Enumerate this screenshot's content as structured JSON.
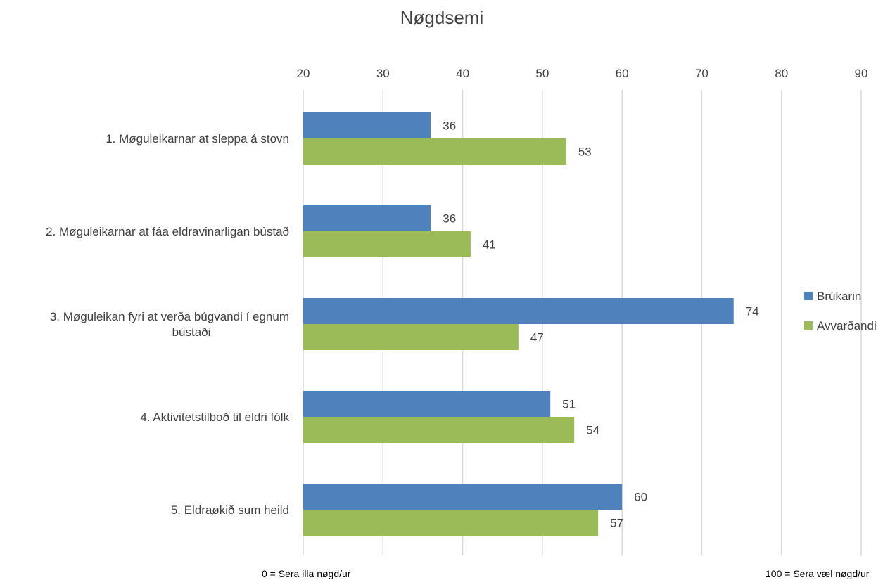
{
  "chart_data": {
    "type": "bar",
    "orientation": "horizontal",
    "title": "Nøgdsemi",
    "xlim": [
      20,
      90
    ],
    "ticks": [
      20,
      30,
      40,
      50,
      60,
      70,
      80,
      90
    ],
    "grid": true,
    "legend_position": "right",
    "categories": [
      [
        "1. Møguleikarnar at sleppa á stovn"
      ],
      [
        "2. Møguleikarnar at fáa eldravinarligan bústað"
      ],
      [
        "3. Møguleikan fyri at verða búgvandi í egnum",
        "bústaði"
      ],
      [
        "4. Aktivitetstilboð til eldri fólk"
      ],
      [
        "5. Eldraøkið sum heild"
      ]
    ],
    "series": [
      {
        "name": "Brúkarin",
        "color": "#4f81bd",
        "values": [
          36,
          36,
          74,
          51,
          60
        ]
      },
      {
        "name": "Avvarðandi",
        "color": "#9bbb59",
        "values": [
          53,
          41,
          47,
          54,
          57
        ]
      }
    ]
  },
  "footer": {
    "left": "0 = Sera illa nøgd/ur",
    "right": "100 = Sera væl nøgd/ur"
  }
}
